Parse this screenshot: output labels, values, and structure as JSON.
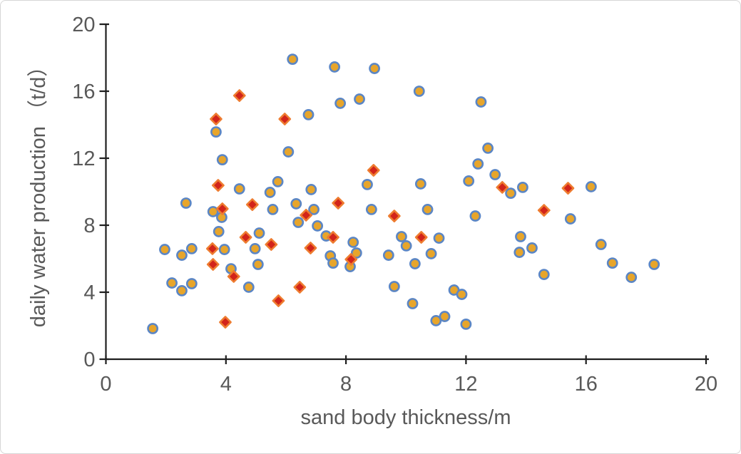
{
  "figure": {
    "background": "#FFFFFF",
    "border_color": "#D6D6D6"
  },
  "chart_data": {
    "type": "scatter",
    "title": "",
    "xlabel": "sand body thickness/m",
    "ylabel": "daily water production （t/d）",
    "xlim": [
      0,
      20
    ],
    "ylim": [
      0,
      20
    ],
    "x_ticks": [
      0,
      4,
      8,
      12,
      16,
      20
    ],
    "y_ticks": [
      0,
      4,
      8,
      12,
      16,
      20
    ],
    "grid": false,
    "legend": "none",
    "axis_color": "#1F1F1F",
    "text_color": "#595959",
    "series": [
      {
        "name": "circle-markers",
        "marker": "circle",
        "fill": "#E7A52B",
        "stroke": "#5B86C5",
        "points": [
          [
            6.22,
            17.91
          ],
          [
            7.62,
            17.45
          ],
          [
            8.95,
            17.36
          ],
          [
            10.44,
            16.0
          ],
          [
            7.81,
            15.28
          ],
          [
            8.45,
            15.53
          ],
          [
            12.5,
            15.36
          ],
          [
            6.75,
            14.6
          ],
          [
            3.67,
            13.57
          ],
          [
            6.08,
            12.38
          ],
          [
            3.88,
            11.91
          ],
          [
            12.73,
            12.6
          ],
          [
            12.4,
            11.66
          ],
          [
            12.97,
            11.02
          ],
          [
            12.09,
            10.64
          ],
          [
            10.49,
            10.47
          ],
          [
            8.71,
            10.43
          ],
          [
            5.73,
            10.6
          ],
          [
            5.47,
            9.96
          ],
          [
            4.45,
            10.17
          ],
          [
            6.84,
            10.13
          ],
          [
            13.49,
            9.91
          ],
          [
            13.89,
            10.26
          ],
          [
            16.17,
            10.3
          ],
          [
            2.67,
            9.32
          ],
          [
            3.57,
            8.81
          ],
          [
            3.86,
            8.47
          ],
          [
            5.56,
            8.94
          ],
          [
            6.34,
            9.28
          ],
          [
            6.41,
            8.17
          ],
          [
            7.05,
            7.96
          ],
          [
            6.93,
            8.94
          ],
          [
            8.85,
            8.94
          ],
          [
            10.72,
            8.94
          ],
          [
            12.31,
            8.55
          ],
          [
            15.48,
            8.38
          ],
          [
            3.76,
            7.62
          ],
          [
            5.11,
            7.53
          ],
          [
            7.34,
            7.36
          ],
          [
            8.24,
            6.98
          ],
          [
            9.85,
            7.32
          ],
          [
            11.1,
            7.23
          ],
          [
            13.82,
            7.32
          ],
          [
            4.97,
            6.6
          ],
          [
            1.96,
            6.55
          ],
          [
            2.86,
            6.6
          ],
          [
            2.53,
            6.21
          ],
          [
            3.95,
            6.55
          ],
          [
            8.35,
            6.34
          ],
          [
            9.42,
            6.21
          ],
          [
            10.01,
            6.77
          ],
          [
            10.84,
            6.3
          ],
          [
            7.48,
            6.17
          ],
          [
            7.57,
            5.74
          ],
          [
            8.14,
            5.53
          ],
          [
            10.3,
            5.7
          ],
          [
            13.78,
            6.38
          ],
          [
            14.2,
            6.64
          ],
          [
            16.5,
            6.85
          ],
          [
            5.07,
            5.66
          ],
          [
            4.17,
            5.4
          ],
          [
            14.6,
            5.06
          ],
          [
            16.88,
            5.74
          ],
          [
            18.27,
            5.66
          ],
          [
            17.51,
            4.89
          ],
          [
            2.2,
            4.55
          ],
          [
            2.86,
            4.51
          ],
          [
            2.53,
            4.09
          ],
          [
            4.76,
            4.3
          ],
          [
            9.61,
            4.34
          ],
          [
            11.6,
            4.13
          ],
          [
            11.86,
            3.87
          ],
          [
            10.22,
            3.32
          ],
          [
            11.0,
            2.3
          ],
          [
            11.29,
            2.55
          ],
          [
            12.0,
            2.09
          ],
          [
            1.56,
            1.83
          ]
        ]
      },
      {
        "name": "diamond-markers",
        "marker": "diamond",
        "fill": "#D2241A",
        "stroke": "#EE7C30",
        "points": [
          [
            4.45,
            15.74
          ],
          [
            3.67,
            14.34
          ],
          [
            5.96,
            14.34
          ],
          [
            8.92,
            11.28
          ],
          [
            3.74,
            10.38
          ],
          [
            13.21,
            10.26
          ],
          [
            15.4,
            10.21
          ],
          [
            3.88,
            8.98
          ],
          [
            4.88,
            9.23
          ],
          [
            7.74,
            9.32
          ],
          [
            6.67,
            8.6
          ],
          [
            9.61,
            8.55
          ],
          [
            14.6,
            8.89
          ],
          [
            4.66,
            7.28
          ],
          [
            7.57,
            7.28
          ],
          [
            10.51,
            7.28
          ],
          [
            3.55,
            6.6
          ],
          [
            5.51,
            6.85
          ],
          [
            6.82,
            6.64
          ],
          [
            8.17,
            5.96
          ],
          [
            3.57,
            5.66
          ],
          [
            4.26,
            4.94
          ],
          [
            6.46,
            4.3
          ],
          [
            5.75,
            3.49
          ],
          [
            3.98,
            2.21
          ]
        ]
      }
    ]
  }
}
